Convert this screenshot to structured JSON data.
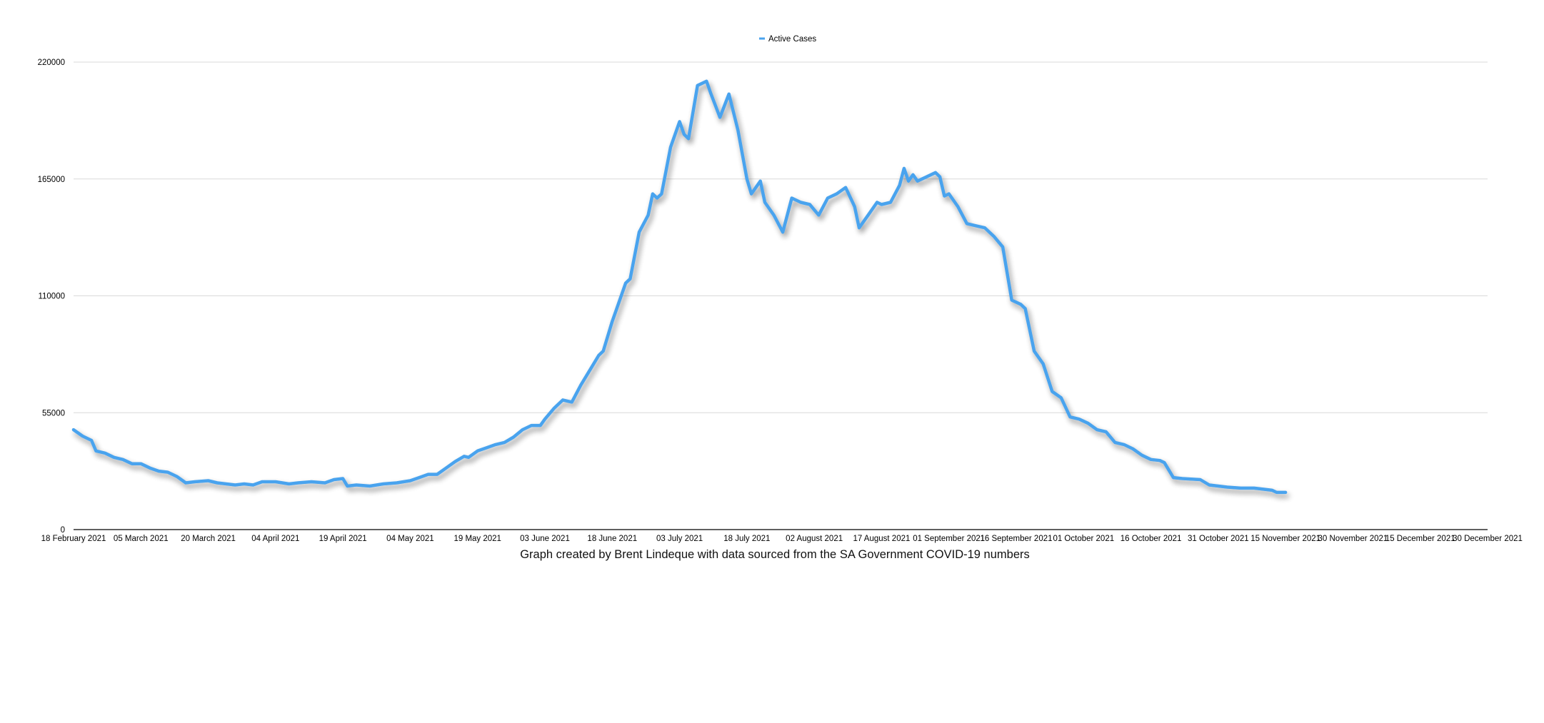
{
  "chart_data": {
    "type": "line",
    "title": "",
    "xlabel": "",
    "ylabel": "",
    "caption": "Graph created by Brent Lindeque with data sourced from the SA Government COVID-19 numbers",
    "legend": {
      "position": "top-center",
      "entries": [
        "Active Cases"
      ]
    },
    "grid": true,
    "ylim": [
      0,
      220000
    ],
    "y_ticks": [
      "0",
      "55000",
      "110000",
      "165000",
      "220000"
    ],
    "xlim": [
      "2021-02-18",
      "2021-12-30"
    ],
    "x_ticks": [
      {
        "date": "2021-02-18",
        "label": "18 February 2021"
      },
      {
        "date": "2021-03-05",
        "label": "05 March 2021"
      },
      {
        "date": "2021-03-20",
        "label": "20 March 2021"
      },
      {
        "date": "2021-04-04",
        "label": "04 April 2021"
      },
      {
        "date": "2021-04-19",
        "label": "19 April 2021"
      },
      {
        "date": "2021-05-04",
        "label": "04 May 2021"
      },
      {
        "date": "2021-05-19",
        "label": "19 May 2021"
      },
      {
        "date": "2021-06-03",
        "label": "03 June 2021"
      },
      {
        "date": "2021-06-18",
        "label": "18 June 2021"
      },
      {
        "date": "2021-07-03",
        "label": "03 July 2021"
      },
      {
        "date": "2021-07-18",
        "label": "18 July 2021"
      },
      {
        "date": "2021-08-02",
        "label": "02 August 2021"
      },
      {
        "date": "2021-08-17",
        "label": "17 August 2021"
      },
      {
        "date": "2021-09-01",
        "label": "01 September 2021"
      },
      {
        "date": "2021-09-16",
        "label": "16 September 2021"
      },
      {
        "date": "2021-10-01",
        "label": "01 October 2021"
      },
      {
        "date": "2021-10-16",
        "label": "16 October 2021"
      },
      {
        "date": "2021-10-31",
        "label": "31 October 2021"
      },
      {
        "date": "2021-11-15",
        "label": "15 November 2021"
      },
      {
        "date": "2021-11-30",
        "label": "30 November 2021"
      },
      {
        "date": "2021-12-15",
        "label": "15 December 2021"
      },
      {
        "date": "2021-12-30",
        "label": "30 December 2021"
      }
    ],
    "series": [
      {
        "name": "Active Cases",
        "color": "#4aa3ee",
        "points": [
          [
            "2021-02-18",
            47000
          ],
          [
            "2021-02-20",
            44000
          ],
          [
            "2021-02-22",
            42000
          ],
          [
            "2021-02-23",
            37000
          ],
          [
            "2021-02-25",
            36000
          ],
          [
            "2021-02-27",
            34000
          ],
          [
            "2021-03-01",
            33000
          ],
          [
            "2021-03-03",
            31000
          ],
          [
            "2021-03-05",
            31000
          ],
          [
            "2021-03-07",
            29000
          ],
          [
            "2021-03-09",
            27500
          ],
          [
            "2021-03-11",
            27000
          ],
          [
            "2021-03-13",
            25000
          ],
          [
            "2021-03-15",
            22000
          ],
          [
            "2021-03-17",
            22500
          ],
          [
            "2021-03-20",
            23000
          ],
          [
            "2021-03-22",
            22000
          ],
          [
            "2021-03-24",
            21500
          ],
          [
            "2021-03-26",
            21000
          ],
          [
            "2021-03-28",
            21500
          ],
          [
            "2021-03-30",
            21000
          ],
          [
            "2021-04-01",
            22500
          ],
          [
            "2021-04-04",
            22500
          ],
          [
            "2021-04-07",
            21500
          ],
          [
            "2021-04-09",
            22000
          ],
          [
            "2021-04-12",
            22500
          ],
          [
            "2021-04-15",
            22000
          ],
          [
            "2021-04-17",
            23500
          ],
          [
            "2021-04-19",
            24000
          ],
          [
            "2021-04-20",
            20500
          ],
          [
            "2021-04-22",
            21000
          ],
          [
            "2021-04-25",
            20500
          ],
          [
            "2021-04-28",
            21500
          ],
          [
            "2021-05-01",
            22000
          ],
          [
            "2021-05-04",
            23000
          ],
          [
            "2021-05-06",
            24500
          ],
          [
            "2021-05-08",
            26000
          ],
          [
            "2021-05-10",
            26000
          ],
          [
            "2021-05-12",
            29000
          ],
          [
            "2021-05-14",
            32000
          ],
          [
            "2021-05-16",
            34500
          ],
          [
            "2021-05-17",
            34000
          ],
          [
            "2021-05-19",
            37000
          ],
          [
            "2021-05-21",
            38500
          ],
          [
            "2021-05-23",
            40000
          ],
          [
            "2021-05-25",
            41000
          ],
          [
            "2021-05-27",
            43500
          ],
          [
            "2021-05-29",
            47000
          ],
          [
            "2021-05-31",
            49000
          ],
          [
            "2021-06-02",
            49000
          ],
          [
            "2021-06-03",
            52000
          ],
          [
            "2021-06-05",
            57000
          ],
          [
            "2021-06-07",
            61000
          ],
          [
            "2021-06-09",
            60000
          ],
          [
            "2021-06-11",
            68000
          ],
          [
            "2021-06-13",
            75000
          ],
          [
            "2021-06-15",
            82000
          ],
          [
            "2021-06-16",
            84000
          ],
          [
            "2021-06-18",
            98000
          ],
          [
            "2021-06-19",
            104000
          ],
          [
            "2021-06-21",
            116000
          ],
          [
            "2021-06-22",
            118000
          ],
          [
            "2021-06-24",
            140000
          ],
          [
            "2021-06-26",
            148000
          ],
          [
            "2021-06-27",
            158000
          ],
          [
            "2021-06-28",
            156000
          ],
          [
            "2021-06-29",
            158000
          ],
          [
            "2021-07-01",
            180000
          ],
          [
            "2021-07-03",
            192000
          ],
          [
            "2021-07-04",
            186000
          ],
          [
            "2021-07-05",
            184000
          ],
          [
            "2021-07-07",
            209000
          ],
          [
            "2021-07-09",
            211000
          ],
          [
            "2021-07-10",
            205000
          ],
          [
            "2021-07-12",
            194000
          ],
          [
            "2021-07-14",
            205000
          ],
          [
            "2021-07-16",
            188000
          ],
          [
            "2021-07-18",
            165000
          ],
          [
            "2021-07-19",
            158000
          ],
          [
            "2021-07-21",
            164000
          ],
          [
            "2021-07-22",
            154000
          ],
          [
            "2021-07-24",
            148000
          ],
          [
            "2021-07-26",
            140000
          ],
          [
            "2021-07-28",
            156000
          ],
          [
            "2021-07-30",
            154000
          ],
          [
            "2021-08-01",
            153000
          ],
          [
            "2021-08-03",
            148000
          ],
          [
            "2021-08-05",
            156000
          ],
          [
            "2021-08-07",
            158000
          ],
          [
            "2021-08-09",
            161000
          ],
          [
            "2021-08-11",
            152000
          ],
          [
            "2021-08-12",
            142000
          ],
          [
            "2021-08-14",
            148000
          ],
          [
            "2021-08-16",
            154000
          ],
          [
            "2021-08-17",
            153000
          ],
          [
            "2021-08-19",
            154000
          ],
          [
            "2021-08-21",
            162000
          ],
          [
            "2021-08-22",
            170000
          ],
          [
            "2021-08-23",
            164000
          ],
          [
            "2021-08-24",
            167000
          ],
          [
            "2021-08-25",
            164000
          ],
          [
            "2021-08-27",
            166000
          ],
          [
            "2021-08-29",
            168000
          ],
          [
            "2021-08-30",
            166000
          ],
          [
            "2021-08-31",
            157000
          ],
          [
            "2021-09-01",
            158000
          ],
          [
            "2021-09-03",
            152000
          ],
          [
            "2021-09-05",
            144000
          ],
          [
            "2021-09-07",
            143000
          ],
          [
            "2021-09-09",
            142000
          ],
          [
            "2021-09-11",
            138000
          ],
          [
            "2021-09-13",
            133000
          ],
          [
            "2021-09-15",
            108000
          ],
          [
            "2021-09-17",
            106000
          ],
          [
            "2021-09-18",
            104000
          ],
          [
            "2021-09-20",
            84000
          ],
          [
            "2021-09-22",
            78000
          ],
          [
            "2021-09-24",
            65000
          ],
          [
            "2021-09-26",
            62000
          ],
          [
            "2021-09-28",
            53000
          ],
          [
            "2021-09-30",
            52000
          ],
          [
            "2021-10-02",
            50000
          ],
          [
            "2021-10-04",
            47000
          ],
          [
            "2021-10-06",
            46000
          ],
          [
            "2021-10-08",
            41000
          ],
          [
            "2021-10-10",
            40000
          ],
          [
            "2021-10-12",
            38000
          ],
          [
            "2021-10-14",
            35000
          ],
          [
            "2021-10-16",
            33000
          ],
          [
            "2021-10-18",
            32500
          ],
          [
            "2021-10-19",
            31500
          ],
          [
            "2021-10-21",
            24500
          ],
          [
            "2021-10-23",
            24000
          ],
          [
            "2021-10-27",
            23500
          ],
          [
            "2021-10-29",
            21000
          ],
          [
            "2021-10-31",
            20500
          ],
          [
            "2021-11-02",
            20000
          ],
          [
            "2021-11-05",
            19500
          ],
          [
            "2021-11-08",
            19500
          ],
          [
            "2021-11-10",
            19000
          ],
          [
            "2021-11-12",
            18500
          ],
          [
            "2021-11-13",
            17500
          ],
          [
            "2021-11-15",
            17500
          ]
        ]
      }
    ]
  }
}
